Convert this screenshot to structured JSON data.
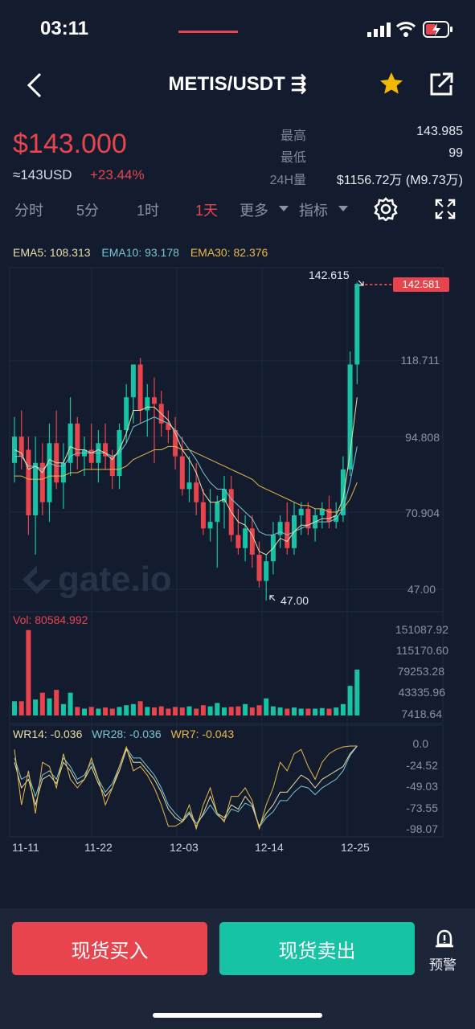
{
  "status": {
    "time": "03:11"
  },
  "header": {
    "title": "METIS/USDT ⇶"
  },
  "price": {
    "last": "$143.000",
    "usd": "≈143USD",
    "change": "+23.44%"
  },
  "stats": {
    "high_label": "最高",
    "high_value": "143.985",
    "low_label": "最低",
    "low_value": "99",
    "vol_label": "24H量",
    "vol_value": "$1156.72万 (M9.73万)"
  },
  "tabs": [
    {
      "label": "分时"
    },
    {
      "label": "5分"
    },
    {
      "label": "1时"
    },
    {
      "label": "1天"
    },
    {
      "label": "更多"
    },
    {
      "label": "指标"
    }
  ],
  "ema": {
    "ema5": "EMA5: 108.313",
    "ema10": "EMA10: 93.178",
    "ema30": "EMA30: 82.376"
  },
  "colors": {
    "up": "#16c4a5",
    "down": "#e8444d",
    "ema5": "#e8dfa8",
    "ema10": "#78c5d6",
    "ema30": "#e9b84a"
  },
  "price_axis": [
    "118.711",
    "94.808",
    "70.904",
    "47.00"
  ],
  "annotations": {
    "high_marker": "142.615",
    "current_tag": "142.581",
    "low_marker": "47.00"
  },
  "volume": {
    "label": "Vol: 80584.992",
    "axis": [
      "151087.92",
      "115170.60",
      "79253.28",
      "43335.96",
      "7418.64"
    ]
  },
  "wr": {
    "wr14": "WR14: -0.036",
    "wr28": "WR28: -0.036",
    "wr7": "WR7: -0.043",
    "axis": [
      "0.0",
      "-24.52",
      "-49.03",
      "-73.55",
      "-98.07"
    ]
  },
  "dates": [
    "11-11",
    "11-22",
    "12-03",
    "12-14",
    "12-25"
  ],
  "watermark": "gate.io",
  "buttons": {
    "buy": "现货买入",
    "sell": "现货卖出",
    "alert": "预警"
  },
  "chart_data": {
    "type": "candlestick",
    "ylim": [
      47.0,
      142.615
    ],
    "candles": [
      {
        "o": 88,
        "h": 102,
        "l": 82,
        "c": 96
      },
      {
        "o": 96,
        "h": 104,
        "l": 86,
        "c": 90
      },
      {
        "o": 92,
        "h": 96,
        "l": 66,
        "c": 72
      },
      {
        "o": 72,
        "h": 96,
        "l": 60,
        "c": 88
      },
      {
        "o": 88,
        "h": 94,
        "l": 72,
        "c": 76
      },
      {
        "o": 76,
        "h": 100,
        "l": 70,
        "c": 94
      },
      {
        "o": 94,
        "h": 104,
        "l": 80,
        "c": 82
      },
      {
        "o": 82,
        "h": 94,
        "l": 74,
        "c": 88
      },
      {
        "o": 88,
        "h": 108,
        "l": 84,
        "c": 100
      },
      {
        "o": 100,
        "h": 102,
        "l": 86,
        "c": 90
      },
      {
        "o": 90,
        "h": 96,
        "l": 84,
        "c": 92
      },
      {
        "o": 92,
        "h": 100,
        "l": 86,
        "c": 88
      },
      {
        "o": 88,
        "h": 98,
        "l": 82,
        "c": 94
      },
      {
        "o": 94,
        "h": 100,
        "l": 86,
        "c": 90
      },
      {
        "o": 90,
        "h": 92,
        "l": 80,
        "c": 84
      },
      {
        "o": 84,
        "h": 100,
        "l": 80,
        "c": 98
      },
      {
        "o": 98,
        "h": 112,
        "l": 94,
        "c": 108
      },
      {
        "o": 108,
        "h": 118,
        "l": 100,
        "c": 118
      },
      {
        "o": 118,
        "h": 120,
        "l": 100,
        "c": 104
      },
      {
        "o": 104,
        "h": 112,
        "l": 96,
        "c": 108
      },
      {
        "o": 108,
        "h": 114,
        "l": 88,
        "c": 106
      },
      {
        "o": 106,
        "h": 110,
        "l": 96,
        "c": 100
      },
      {
        "o": 100,
        "h": 104,
        "l": 94,
        "c": 98
      },
      {
        "o": 98,
        "h": 102,
        "l": 86,
        "c": 90
      },
      {
        "o": 90,
        "h": 96,
        "l": 78,
        "c": 80
      },
      {
        "o": 80,
        "h": 90,
        "l": 76,
        "c": 82
      },
      {
        "o": 82,
        "h": 88,
        "l": 72,
        "c": 76
      },
      {
        "o": 76,
        "h": 80,
        "l": 66,
        "c": 68
      },
      {
        "o": 68,
        "h": 80,
        "l": 64,
        "c": 70
      },
      {
        "o": 70,
        "h": 78,
        "l": 56,
        "c": 76
      },
      {
        "o": 76,
        "h": 84,
        "l": 68,
        "c": 80
      },
      {
        "o": 80,
        "h": 84,
        "l": 64,
        "c": 66
      },
      {
        "o": 66,
        "h": 74,
        "l": 60,
        "c": 62
      },
      {
        "o": 62,
        "h": 72,
        "l": 58,
        "c": 68
      },
      {
        "o": 68,
        "h": 72,
        "l": 56,
        "c": 60
      },
      {
        "o": 60,
        "h": 64,
        "l": 50,
        "c": 52
      },
      {
        "o": 52,
        "h": 60,
        "l": 46,
        "c": 58
      },
      {
        "o": 58,
        "h": 70,
        "l": 54,
        "c": 66
      },
      {
        "o": 66,
        "h": 72,
        "l": 62,
        "c": 70
      },
      {
        "o": 70,
        "h": 76,
        "l": 60,
        "c": 62
      },
      {
        "o": 62,
        "h": 76,
        "l": 60,
        "c": 72
      },
      {
        "o": 72,
        "h": 76,
        "l": 66,
        "c": 74
      },
      {
        "o": 74,
        "h": 76,
        "l": 66,
        "c": 68
      },
      {
        "o": 68,
        "h": 74,
        "l": 64,
        "c": 72
      },
      {
        "o": 72,
        "h": 76,
        "l": 68,
        "c": 74
      },
      {
        "o": 74,
        "h": 78,
        "l": 68,
        "c": 70
      },
      {
        "o": 70,
        "h": 76,
        "l": 68,
        "c": 72
      },
      {
        "o": 72,
        "h": 90,
        "l": 70,
        "c": 86
      },
      {
        "o": 86,
        "h": 122,
        "l": 84,
        "c": 118
      },
      {
        "o": 118,
        "h": 143,
        "l": 112,
        "c": 142.6
      }
    ],
    "ema5": [
      92,
      91,
      86,
      87,
      85,
      89,
      88,
      88,
      93,
      92,
      92,
      91,
      92,
      91,
      89,
      92,
      97,
      104,
      104,
      105,
      105,
      103,
      101,
      97,
      92,
      89,
      85,
      79,
      76,
      76,
      77,
      73,
      70,
      69,
      66,
      61,
      60,
      62,
      65,
      64,
      67,
      69,
      69,
      70,
      71,
      71,
      72,
      77,
      91,
      108
    ],
    "ema10": [
      90,
      90,
      87,
      87,
      86,
      88,
      87,
      87,
      90,
      91,
      91,
      91,
      91,
      91,
      90,
      91,
      94,
      99,
      100,
      101,
      102,
      101,
      100,
      98,
      95,
      92,
      89,
      85,
      82,
      80,
      80,
      77,
      75,
      73,
      71,
      67,
      66,
      66,
      67,
      66,
      67,
      68,
      69,
      70,
      70,
      70,
      71,
      74,
      82,
      93
    ],
    "ema30": [
      84,
      84,
      83,
      83,
      83,
      84,
      84,
      84,
      85,
      85,
      86,
      86,
      86,
      86,
      86,
      86,
      87,
      89,
      90,
      91,
      92,
      92,
      93,
      93,
      92,
      92,
      91,
      90,
      89,
      88,
      87,
      86,
      85,
      84,
      83,
      81,
      80,
      79,
      78,
      77,
      76,
      75,
      75,
      74,
      74,
      73,
      73,
      74,
      77,
      82
    ],
    "volume": [
      25000,
      25000,
      150000,
      28000,
      40000,
      30000,
      45000,
      20000,
      40000,
      15000,
      12000,
      15000,
      12000,
      14000,
      12000,
      15000,
      18000,
      20000,
      25000,
      15000,
      14000,
      16000,
      12000,
      15000,
      14000,
      16000,
      12000,
      18000,
      16000,
      22000,
      14000,
      15000,
      16000,
      20000,
      14000,
      18000,
      30000,
      16000,
      14000,
      12000,
      14000,
      12000,
      12000,
      12000,
      13000,
      12000,
      14000,
      20000,
      52000,
      80585
    ],
    "wr14": [
      -20,
      -50,
      -40,
      -70,
      -40,
      -35,
      -45,
      -20,
      -30,
      -45,
      -40,
      -25,
      -45,
      -60,
      -50,
      -30,
      -5,
      -20,
      -20,
      -30,
      -40,
      -55,
      -75,
      -85,
      -90,
      -80,
      -95,
      -80,
      -60,
      -80,
      -85,
      -70,
      -75,
      -60,
      -70,
      -95,
      -80,
      -70,
      -55,
      -55,
      -45,
      -35,
      -40,
      -50,
      -40,
      -35,
      -30,
      -25,
      -10,
      -1
    ],
    "wr28": [
      -15,
      -40,
      -35,
      -60,
      -35,
      -30,
      -40,
      -15,
      -25,
      -40,
      -35,
      -20,
      -40,
      -55,
      -45,
      -25,
      -3,
      -15,
      -15,
      -25,
      -35,
      -50,
      -70,
      -80,
      -88,
      -78,
      -92,
      -82,
      -70,
      -82,
      -88,
      -75,
      -78,
      -68,
      -72,
      -96,
      -85,
      -78,
      -65,
      -65,
      -55,
      -48,
      -50,
      -58,
      -50,
      -45,
      -40,
      -30,
      -12,
      -1
    ],
    "wr7": [
      -5,
      -70,
      -30,
      -80,
      -20,
      -25,
      -50,
      -10,
      -40,
      -50,
      -40,
      -15,
      -40,
      -70,
      -50,
      -25,
      -2,
      -30,
      -25,
      -35,
      -50,
      -70,
      -95,
      -95,
      -90,
      -70,
      -98,
      -70,
      -50,
      -80,
      -90,
      -60,
      -60,
      -50,
      -65,
      -98,
      -70,
      -50,
      -20,
      -30,
      -10,
      -5,
      -25,
      -40,
      -20,
      -10,
      -5,
      -2,
      -1,
      -1
    ]
  }
}
